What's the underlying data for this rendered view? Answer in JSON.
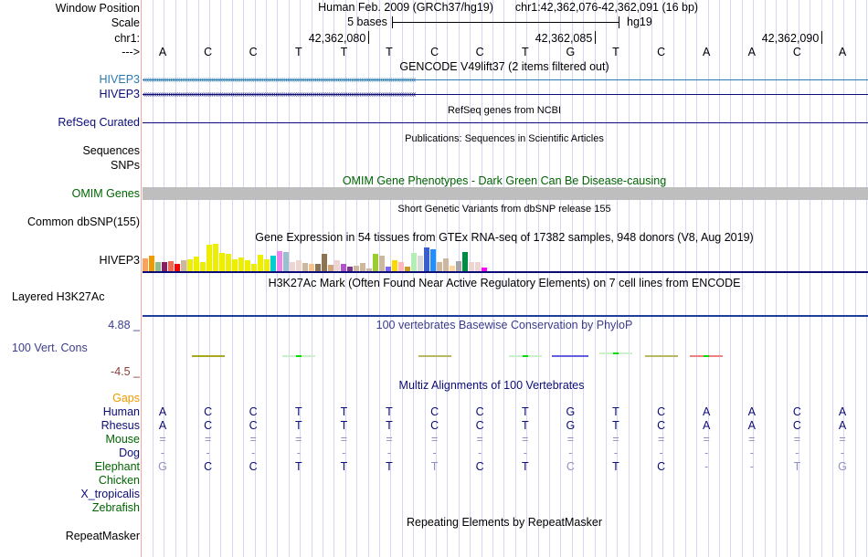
{
  "header": {
    "window_position_label": "Window Position",
    "scale_label": "Scale",
    "chrom_label": "chr1:",
    "strand_label": "--->",
    "assembly_title": "Human Feb. 2009 (GRCh37/hg19)",
    "position_text": "chr1:42,362,076-42,362,091 (16 bp)",
    "scale_text": "5 bases",
    "scale_assembly": "hg19",
    "coords": [
      "42,362,080",
      "42,362,085",
      "42,362,090"
    ]
  },
  "sequence": [
    "A",
    "C",
    "C",
    "T",
    "T",
    "T",
    "C",
    "C",
    "T",
    "G",
    "T",
    "C",
    "A",
    "A",
    "C",
    "A"
  ],
  "tracks": {
    "gencode": {
      "title": "GENCODE V49lift37 (2 items filtered out)",
      "items": [
        "HIVEP3",
        "HIVEP3"
      ],
      "colors": [
        "#2a7ab0",
        "#0c0c78"
      ]
    },
    "refseq": {
      "label": "RefSeq Curated",
      "title": "RefSeq genes from NCBI",
      "color": "#0c0c78"
    },
    "publications": {
      "title": "Publications: Sequences in Scientific Articles",
      "labels": [
        "Sequences",
        "SNPs"
      ]
    },
    "omim": {
      "label": "OMIM Genes",
      "title": "OMIM Gene Phenotypes - Dark Green Can Be Disease-causing",
      "color": "#006400",
      "bar_color": "#bebebe"
    },
    "dbsnp": {
      "label": "Common dbSNP(155)",
      "title": "Short Genetic Variants from dbSNP release 155"
    },
    "gtex": {
      "label": "HIVEP3",
      "title": "Gene Expression in 54 tissues from GTEx RNA-seq of 17382 samples, 948 donors (V8, Aug 2019)",
      "bars": [
        {
          "v": 14,
          "c": "#f4a460"
        },
        {
          "v": 17,
          "c": "#ee9a00"
        },
        {
          "v": 10,
          "c": "#8fbc8f"
        },
        {
          "v": 10,
          "c": "#8b1c62"
        },
        {
          "v": 11,
          "c": "#ee6a50"
        },
        {
          "v": 8,
          "c": "#ff0000"
        },
        {
          "v": 12,
          "c": "#cdb79e"
        },
        {
          "v": 13,
          "c": "#eeee00"
        },
        {
          "v": 16,
          "c": "#eeee00"
        },
        {
          "v": 10,
          "c": "#eeee00"
        },
        {
          "v": 29,
          "c": "#eeee00"
        },
        {
          "v": 30,
          "c": "#eeee00"
        },
        {
          "v": 20,
          "c": "#eeee00"
        },
        {
          "v": 19,
          "c": "#eeee00"
        },
        {
          "v": 13,
          "c": "#eeee00"
        },
        {
          "v": 15,
          "c": "#eeee00"
        },
        {
          "v": 12,
          "c": "#eeee00"
        },
        {
          "v": 8,
          "c": "#eeee00"
        },
        {
          "v": 18,
          "c": "#eeee00"
        },
        {
          "v": 13,
          "c": "#eeee00"
        },
        {
          "v": 17,
          "c": "#00cdcd"
        },
        {
          "v": 22,
          "c": "#ee82ee"
        },
        {
          "v": 21,
          "c": "#9ac0cd"
        },
        {
          "v": 10,
          "c": "#eed5d2"
        },
        {
          "v": 12,
          "c": "#eed5d2"
        },
        {
          "v": 9,
          "c": "#cdb79e"
        },
        {
          "v": 8,
          "c": "#f4c28c"
        },
        {
          "v": 8,
          "c": "#8b7355"
        },
        {
          "v": 19,
          "c": "#8b7355"
        },
        {
          "v": 7,
          "c": "#d2a679"
        },
        {
          "v": 12,
          "c": "#eed5d2"
        },
        {
          "v": 8,
          "c": "#b452cd"
        },
        {
          "v": 5,
          "c": "#7a378b"
        },
        {
          "v": 6,
          "c": "#cdb79e"
        },
        {
          "v": 9,
          "c": "#cdb79e"
        },
        {
          "v": 3,
          "c": "#cdb79e"
        },
        {
          "v": 19,
          "c": "#9acd32"
        },
        {
          "v": 17,
          "c": "#cdb79e"
        },
        {
          "v": 5,
          "c": "#7b68ee"
        },
        {
          "v": 12,
          "c": "#ffd700"
        },
        {
          "v": 10,
          "c": "#ffb6c1"
        },
        {
          "v": 5,
          "c": "#cd9b1d"
        },
        {
          "v": 20,
          "c": "#b4eeb4"
        },
        {
          "v": 17,
          "c": "#d9d9d9"
        },
        {
          "v": 26,
          "c": "#3a5fcd"
        },
        {
          "v": 24,
          "c": "#1e90ff"
        },
        {
          "v": 10,
          "c": "#cdb79e"
        },
        {
          "v": 14,
          "c": "#cdb79e"
        },
        {
          "v": 6,
          "c": "#ffd39b"
        },
        {
          "v": 11,
          "c": "#a6a6a6"
        },
        {
          "v": 21,
          "c": "#008b45"
        },
        {
          "v": 10,
          "c": "#eed5d2"
        },
        {
          "v": 10,
          "c": "#eed5d2"
        },
        {
          "v": 4,
          "c": "#ff00ff"
        }
      ],
      "baseline_color": "#0c0c78"
    },
    "h3k27ac": {
      "label": "Layered H3K27Ac",
      "title": "H3K27Ac Mark (Often Found Near Active Regulatory Elements) on 7 cell lines from ENCODE"
    },
    "phylop": {
      "label": "100 Vert. Cons",
      "title": "100 vertebrates Basewise Conservation by PhyloP",
      "max": "4.88 _",
      "min": "-4.5 _",
      "label_color": "#3c3c8c",
      "min_color": "#8c3c3c",
      "scores": [
        0,
        0.3,
        0,
        0.1,
        0,
        0,
        0.1,
        0,
        0.2,
        0.4,
        0,
        -0.1,
        0,
        0,
        0,
        0
      ]
    },
    "multiz": {
      "title": "Multiz Alignments of 100 Vertebrates",
      "gaps_label": "Gaps",
      "species": [
        {
          "name": "Human",
          "color": "#0c0c78",
          "bases": [
            "A",
            "C",
            "C",
            "T",
            "T",
            "T",
            "C",
            "C",
            "T",
            "G",
            "T",
            "C",
            "A",
            "A",
            "C",
            "A"
          ],
          "light": []
        },
        {
          "name": "Rhesus",
          "color": "#0c0c78",
          "bases": [
            "A",
            "C",
            "C",
            "T",
            "T",
            "T",
            "C",
            "C",
            "T",
            "G",
            "T",
            "C",
            "A",
            "A",
            "C",
            "A"
          ],
          "light": []
        },
        {
          "name": "Mouse",
          "color": "#006400",
          "bases": [
            "=",
            "=",
            "=",
            "=",
            "=",
            "=",
            "=",
            "=",
            "=",
            "=",
            "=",
            "=",
            "=",
            "=",
            "=",
            "="
          ],
          "light": [
            0,
            1,
            2,
            3,
            4,
            5,
            6,
            7,
            8,
            9,
            10,
            11,
            12,
            13,
            14,
            15
          ]
        },
        {
          "name": "Dog",
          "color": "#0c0c78",
          "bases": [
            "-",
            "-",
            "-",
            "-",
            "-",
            "-",
            "-",
            "-",
            "-",
            "-",
            "-",
            "-",
            "-",
            "-",
            "-",
            "-"
          ],
          "light": [
            0,
            1,
            2,
            3,
            4,
            5,
            6,
            7,
            8,
            9,
            10,
            11,
            12,
            13,
            14,
            15
          ]
        },
        {
          "name": "Elephant",
          "color": "#006400",
          "bases": [
            "G",
            "C",
            "C",
            "T",
            "T",
            "T",
            "T",
            "C",
            "T",
            "C",
            "T",
            "C",
            "-",
            "-",
            "T",
            "G"
          ],
          "light": [
            0,
            6,
            9,
            12,
            13,
            14,
            15
          ]
        },
        {
          "name": "Chicken",
          "color": "#006400",
          "bases": [],
          "light": []
        },
        {
          "name": "X_tropicalis",
          "color": "#0c0c78",
          "bases": [],
          "light": []
        },
        {
          "name": "Zebrafish",
          "color": "#006400",
          "bases": [],
          "light": []
        }
      ]
    },
    "repeatmasker": {
      "label": "RepeatMasker",
      "title": "Repeating Elements by RepeatMasker"
    }
  }
}
